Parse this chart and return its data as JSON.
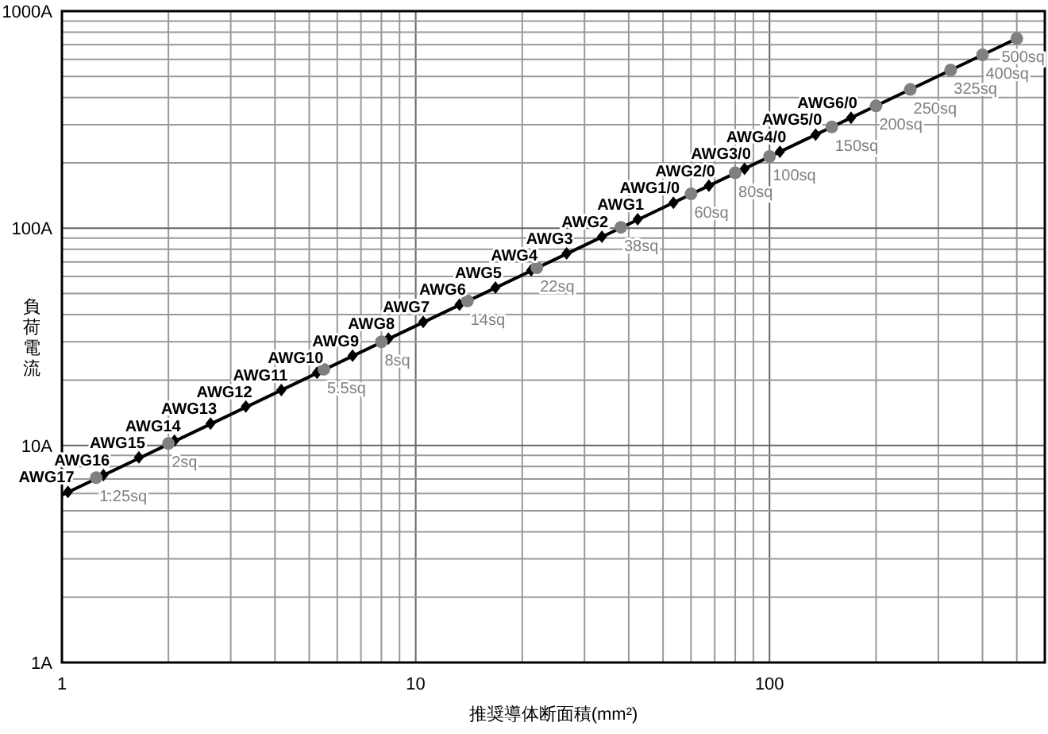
{
  "chart_data": {
    "type": "scatter",
    "xlabel": "推奨導体断面積(mm²)",
    "ylabel": "負荷電流",
    "log": "xy",
    "xlim": [
      1,
      600
    ],
    "ylim": [
      1,
      1000
    ],
    "xticks": [
      1,
      10,
      100
    ],
    "yticks": [
      {
        "value": 1,
        "label": "1A"
      },
      {
        "value": 10,
        "label": "10A"
      },
      {
        "value": 100,
        "label": "100A"
      },
      {
        "value": 1000,
        "label": "1000A"
      }
    ],
    "grid": true,
    "series": [
      {
        "type": "line",
        "color": "#000000",
        "marker": "none",
        "x": [
          1,
          500
        ],
        "values": [
          5.9,
          748
        ]
      },
      {
        "color": "#000000",
        "marker": "diamond",
        "x": [
          1.04,
          1.31,
          1.65,
          2.08,
          2.63,
          3.31,
          4.17,
          5.26,
          6.63,
          8.37,
          10.5,
          13.3,
          16.8,
          21.2,
          26.7,
          33.6,
          42.4,
          53.5,
          67.4,
          85,
          107,
          135,
          170
        ],
        "values": [
          6.1,
          7.3,
          8.8,
          10.5,
          12.6,
          15.1,
          18,
          21.6,
          25.9,
          31,
          37,
          44.5,
          53.3,
          64,
          76.6,
          91.5,
          110,
          131,
          157,
          188,
          225,
          270,
          323
        ]
      },
      {
        "color": "#808080",
        "marker": "circle",
        "x": [
          1.25,
          2,
          5.5,
          8,
          14,
          22,
          38,
          60,
          80,
          100,
          150,
          200,
          250,
          325,
          400,
          500
        ],
        "values": [
          7.1,
          10.2,
          22.4,
          30,
          46.3,
          65.8,
          101,
          144,
          180,
          214,
          293,
          366,
          436,
          535,
          629,
          748
        ]
      }
    ],
    "annotations": [
      {
        "text": "AWG17",
        "x": 1.04,
        "y": 6.1
      },
      {
        "text": "AWG16",
        "x": 1.31,
        "y": 7.3
      },
      {
        "text": "AWG15",
        "x": 1.65,
        "y": 8.8
      },
      {
        "text": "AWG14",
        "x": 2.08,
        "y": 10.5
      },
      {
        "text": "AWG13",
        "x": 2.63,
        "y": 12.6
      },
      {
        "text": "AWG12",
        "x": 3.31,
        "y": 15.1
      },
      {
        "text": "AWG11",
        "x": 4.17,
        "y": 18
      },
      {
        "text": "AWG10",
        "x": 5.26,
        "y": 21.6
      },
      {
        "text": "AWG9",
        "x": 6.63,
        "y": 25.9
      },
      {
        "text": "AWG8",
        "x": 8.37,
        "y": 31
      },
      {
        "text": "AWG7",
        "x": 10.5,
        "y": 37
      },
      {
        "text": "AWG6",
        "x": 13.3,
        "y": 44.5
      },
      {
        "text": "AWG5",
        "x": 16.8,
        "y": 53.3
      },
      {
        "text": "AWG4",
        "x": 21.2,
        "y": 64
      },
      {
        "text": "AWG3",
        "x": 26.7,
        "y": 76.6
      },
      {
        "text": "AWG2",
        "x": 33.6,
        "y": 91.5
      },
      {
        "text": "AWG1",
        "x": 42.4,
        "y": 110
      },
      {
        "text": "AWG1/0",
        "x": 53.5,
        "y": 131
      },
      {
        "text": "AWG2/0",
        "x": 67.4,
        "y": 157
      },
      {
        "text": "AWG3/0",
        "x": 85,
        "y": 188
      },
      {
        "text": "AWG4/0",
        "x": 107,
        "y": 225
      },
      {
        "text": "AWG5/0",
        "x": 135,
        "y": 270
      },
      {
        "text": "AWG6/0",
        "x": 170,
        "y": 323
      },
      {
        "text": "1.25sq",
        "x": 1.25,
        "y": 7.1
      },
      {
        "text": "2sq",
        "x": 2,
        "y": 10.2
      },
      {
        "text": "5.5sq",
        "x": 5.5,
        "y": 22.4
      },
      {
        "text": "8sq",
        "x": 8,
        "y": 30
      },
      {
        "text": "14sq",
        "x": 14,
        "y": 46.3
      },
      {
        "text": "22sq",
        "x": 22,
        "y": 65.8
      },
      {
        "text": "38sq",
        "x": 38,
        "y": 101
      },
      {
        "text": "60sq",
        "x": 60,
        "y": 144
      },
      {
        "text": "80sq",
        "x": 80,
        "y": 180
      },
      {
        "text": "100sq",
        "x": 100,
        "y": 214
      },
      {
        "text": "150sq",
        "x": 150,
        "y": 293
      },
      {
        "text": "200sq",
        "x": 200,
        "y": 366
      },
      {
        "text": "250sq",
        "x": 250,
        "y": 436
      },
      {
        "text": "325sq",
        "x": 325,
        "y": 535
      },
      {
        "text": "400sq",
        "x": 400,
        "y": 629
      },
      {
        "text": "500sq",
        "x": 500,
        "y": 748
      }
    ]
  }
}
